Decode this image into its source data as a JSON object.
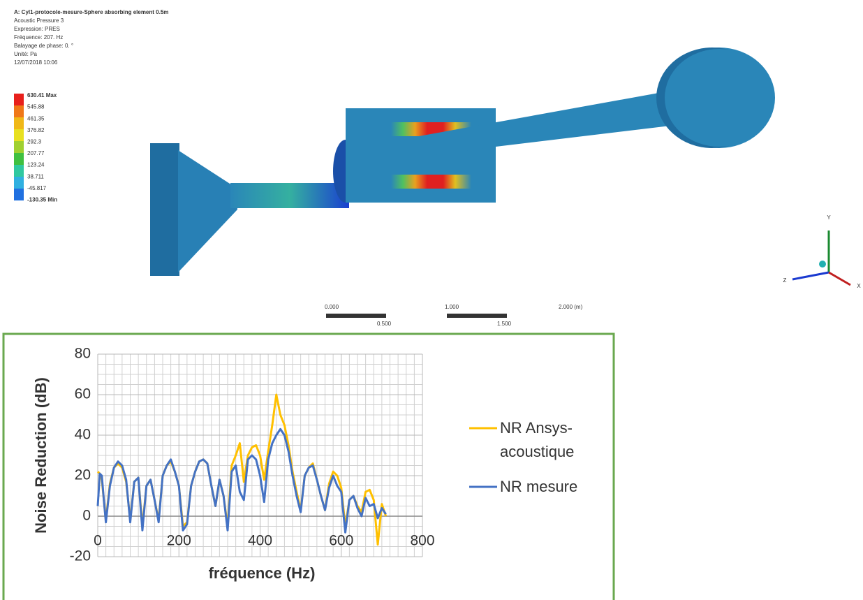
{
  "simulation": {
    "title": "A: Cyl1-protocole-mesure-Sphere absorbing element 0.5m",
    "lines": [
      "Acoustic Pressure 3",
      "Expression: PRES",
      "Fréquence: 207. Hz",
      "Balayage de phase: 0. °",
      "Unité: Pa",
      "12/07/2018 10:06"
    ],
    "legend_labels": [
      "630.41 Max",
      "545.88",
      "461.35",
      "376.82",
      "292.3",
      "207.77",
      "123.24",
      "38.711",
      "-45.817",
      "-130.35 Min"
    ],
    "legend_colors": [
      "#e8201c",
      "#f07818",
      "#f0b818",
      "#e8e020",
      "#a0d030",
      "#40c040",
      "#30c8a0",
      "#30b0e0",
      "#2070e0"
    ],
    "scale_top": [
      "0.000",
      "1.000",
      "2.000 (m)"
    ],
    "scale_bottom": [
      "0.500",
      "1.500"
    ],
    "axes": [
      "Y",
      "Z",
      "X"
    ]
  },
  "chart_data": {
    "type": "line",
    "x_label": "fréquence (Hz)",
    "y_label": "Noise Reduction (dB)",
    "x": [
      0,
      5,
      10,
      15,
      20,
      30,
      40,
      50,
      60,
      70,
      80,
      90,
      100,
      110,
      120,
      130,
      140,
      150,
      160,
      170,
      180,
      190,
      200,
      210,
      220,
      230,
      240,
      250,
      260,
      270,
      280,
      290,
      300,
      310,
      320,
      330,
      340,
      350,
      360,
      370,
      380,
      390,
      400,
      410,
      420,
      430,
      440,
      450,
      460,
      470,
      480,
      490,
      500,
      510,
      520,
      530,
      540,
      550,
      560,
      570,
      580,
      590,
      600,
      610,
      620,
      630,
      640,
      650,
      660,
      670,
      680,
      690,
      700,
      710
    ],
    "series": [
      {
        "name": "NR Ansys-acoustique",
        "color": "#ffc000",
        "values": [
          22,
          21,
          18,
          8,
          -2,
          16,
          24,
          26,
          24,
          17,
          -2,
          17,
          19,
          -5,
          15,
          18,
          8,
          -2,
          20,
          25,
          27,
          22,
          15,
          -5,
          -3,
          15,
          22,
          27,
          28,
          26,
          15,
          5,
          18,
          10,
          -5,
          25,
          30,
          36,
          17,
          30,
          34,
          35,
          30,
          18,
          32,
          45,
          60,
          50,
          45,
          35,
          22,
          12,
          3,
          20,
          24,
          26,
          18,
          10,
          3,
          16,
          22,
          20,
          14,
          -5,
          8,
          10,
          5,
          2,
          12,
          13,
          8,
          -14,
          6,
          0
        ]
      },
      {
        "name": "NR mesure",
        "color": "#4472c4",
        "values": [
          5,
          21,
          20,
          8,
          -3,
          15,
          24,
          27,
          25,
          18,
          -3,
          17,
          19,
          -7,
          15,
          18,
          8,
          -3,
          20,
          25,
          28,
          22,
          15,
          -7,
          -4,
          15,
          22,
          27,
          28,
          26,
          15,
          5,
          18,
          10,
          -7,
          22,
          25,
          12,
          8,
          28,
          30,
          28,
          20,
          7,
          28,
          36,
          40,
          43,
          40,
          32,
          20,
          10,
          2,
          20,
          24,
          25,
          18,
          10,
          3,
          14,
          20,
          15,
          12,
          -8,
          8,
          10,
          4,
          0,
          9,
          5,
          6,
          -1,
          4,
          1
        ]
      }
    ],
    "xlim": [
      0,
      800
    ],
    "xticks": [
      0,
      200,
      400,
      600,
      800
    ],
    "ylim": [
      -20,
      80
    ],
    "yticks": [
      -20,
      0,
      20,
      40,
      60,
      80
    ],
    "grid": true,
    "legend": "right"
  }
}
